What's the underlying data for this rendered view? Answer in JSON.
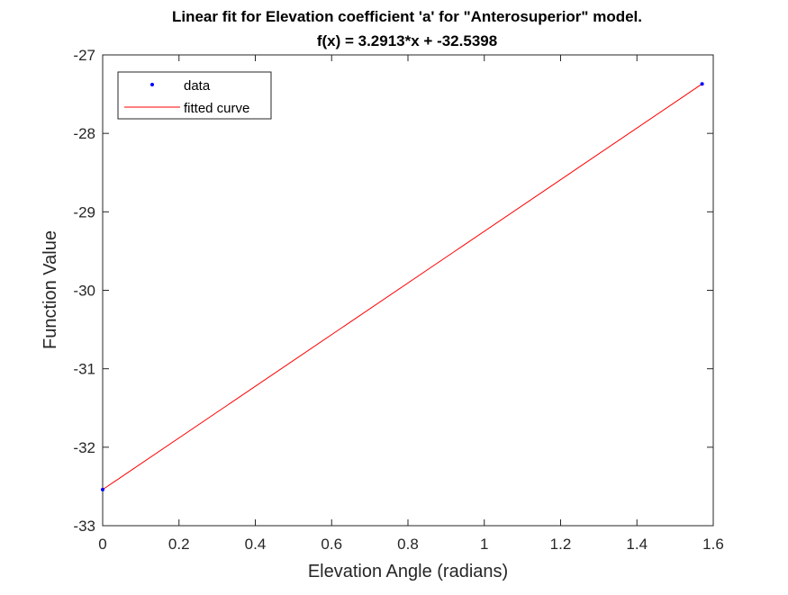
{
  "chart_data": {
    "type": "line",
    "title": "Linear fit for Elevation coefficient 'a' for \"Anterosuperior\" model.",
    "subtitle": "f(x) = 3.2913*x + -32.5398",
    "xlabel": "Elevation Angle (radians)",
    "ylabel": "Function Value",
    "xlim": [
      0,
      1.6
    ],
    "ylim": [
      -33,
      -27
    ],
    "xticks": [
      0,
      0.2,
      0.4,
      0.6,
      0.8,
      1,
      1.2,
      1.4,
      1.6
    ],
    "xtick_labels": [
      "0",
      "0.2",
      "0.4",
      "0.6",
      "0.8",
      "1",
      "1.2",
      "1.4",
      "1.6"
    ],
    "yticks": [
      -33,
      -32,
      -31,
      -30,
      -29,
      -28,
      -27
    ],
    "ytick_labels": [
      "-33",
      "-32",
      "-31",
      "-30",
      "-29",
      "-28",
      "-27"
    ],
    "grid": false,
    "legend_position": "top-left",
    "series": [
      {
        "name": "data",
        "style": "markers",
        "color": "#0000ff",
        "x": [
          0,
          1.5708
        ],
        "y": [
          -32.5398,
          -27.3697
        ]
      },
      {
        "name": "fitted curve",
        "style": "line",
        "color": "#ff0000",
        "x": [
          0,
          1.5708
        ],
        "y": [
          -32.5398,
          -27.3697
        ]
      }
    ]
  }
}
